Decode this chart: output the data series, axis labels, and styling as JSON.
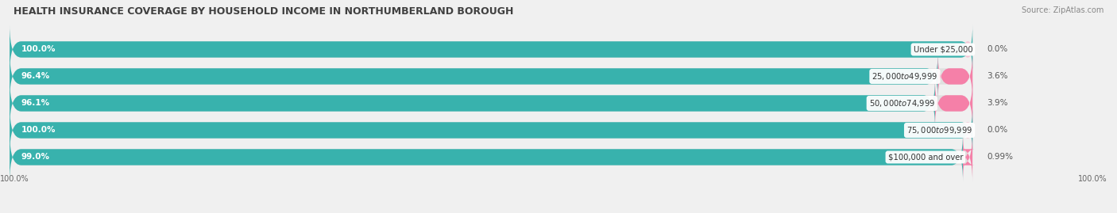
{
  "title": "HEALTH INSURANCE COVERAGE BY HOUSEHOLD INCOME IN NORTHUMBERLAND BOROUGH",
  "source": "Source: ZipAtlas.com",
  "categories": [
    "Under $25,000",
    "$25,000 to $49,999",
    "$50,000 to $74,999",
    "$75,000 to $99,999",
    "$100,000 and over"
  ],
  "with_coverage": [
    100.0,
    96.4,
    96.1,
    100.0,
    99.0
  ],
  "without_coverage": [
    0.0,
    3.6,
    3.9,
    0.0,
    0.99
  ],
  "with_labels": [
    "100.0%",
    "96.4%",
    "96.1%",
    "100.0%",
    "99.0%"
  ],
  "without_labels": [
    "0.0%",
    "3.6%",
    "3.9%",
    "0.0%",
    "0.99%"
  ],
  "color_with": "#38b2ad",
  "color_without": "#f580a8",
  "bg_color": "#f0f0f0",
  "bar_bg_color": "#e0e0e0",
  "title_fontsize": 9.0,
  "label_fontsize": 7.5,
  "source_fontsize": 7.0,
  "tick_fontsize": 7.0,
  "bar_total": 100.0,
  "xlim_left": -1.0,
  "xlim_right": 115.0,
  "bottom_left_label": "100.0%",
  "bottom_right_label": "100.0%"
}
